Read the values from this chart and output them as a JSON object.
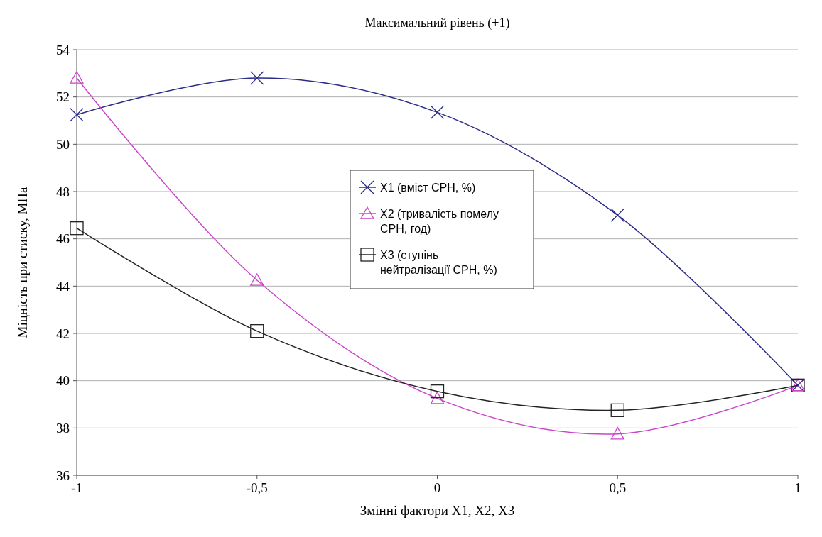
{
  "chart_data": {
    "type": "line",
    "title": "Максимальний рівень (+1)",
    "xlabel": "Змінні фактори X1, X2, X3",
    "ylabel": "Міцність при стиску, МПа",
    "x": [
      -1,
      -0.5,
      0,
      0.5,
      1
    ],
    "series": [
      {
        "name": "X1 (вміст СРН, %)",
        "color": "#2b2b88",
        "marker": "cross",
        "values": [
          51.25,
          52.8,
          51.35,
          47.0,
          39.8
        ]
      },
      {
        "name": "X2 (тривалість помелу СРН, год)",
        "color": "#cc44cc",
        "marker": "triangle",
        "values": [
          52.8,
          44.25,
          39.25,
          37.75,
          39.8
        ]
      },
      {
        "name": "X3 (ступінь нейтралізації СРН, %)",
        "color": "#222222",
        "marker": "square",
        "values": [
          46.45,
          42.1,
          39.55,
          38.75,
          39.8
        ]
      }
    ],
    "xlim": [
      -1,
      1
    ],
    "xticks": [
      {
        "value": -1,
        "label": "-1"
      },
      {
        "value": -0.5,
        "label": "-0,5"
      },
      0,
      {
        "value": 0.5,
        "label": "0,5"
      },
      1
    ],
    "ylim": [
      36,
      54
    ],
    "yticks": [
      36,
      38,
      40,
      42,
      44,
      46,
      48,
      50,
      52,
      54
    ],
    "grid": "y",
    "legend": "center",
    "line_style": "solid"
  }
}
